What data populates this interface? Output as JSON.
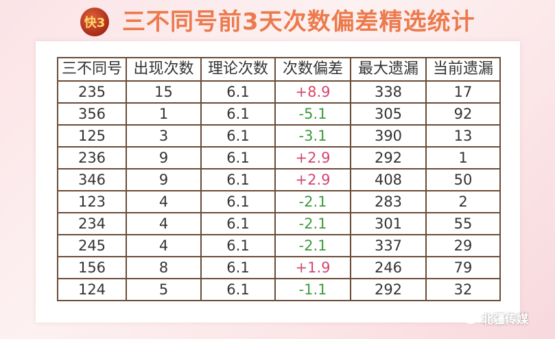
{
  "header": {
    "logo_text": "快3",
    "title": "三不同号前3天次数偏差精选统计"
  },
  "table": {
    "columns": [
      "三不同号",
      "出现次数",
      "理论次数",
      "次数偏差",
      "最大遗漏",
      "当前遗漏"
    ],
    "rows": [
      [
        "235",
        "15",
        "6.1",
        "+8.9",
        "338",
        "17"
      ],
      [
        "356",
        "1",
        "6.1",
        "-5.1",
        "305",
        "92"
      ],
      [
        "125",
        "3",
        "6.1",
        "-3.1",
        "390",
        "13"
      ],
      [
        "236",
        "9",
        "6.1",
        "+2.9",
        "292",
        "1"
      ],
      [
        "346",
        "9",
        "6.1",
        "+2.9",
        "408",
        "50"
      ],
      [
        "123",
        "4",
        "6.1",
        "-2.1",
        "283",
        "2"
      ],
      [
        "234",
        "4",
        "6.1",
        "-2.1",
        "301",
        "55"
      ],
      [
        "245",
        "4",
        "6.1",
        "-2.1",
        "337",
        "29"
      ],
      [
        "156",
        "8",
        "6.1",
        "+1.9",
        "246",
        "79"
      ],
      [
        "124",
        "5",
        "6.1",
        "-1.1",
        "292",
        "32"
      ]
    ]
  },
  "colors": {
    "positive": "#d6456a",
    "negative": "#3d9a3d",
    "title": "#ec7a4c"
  },
  "watermark": {
    "icon": "wechat-icon",
    "text": "北疆传媒"
  }
}
